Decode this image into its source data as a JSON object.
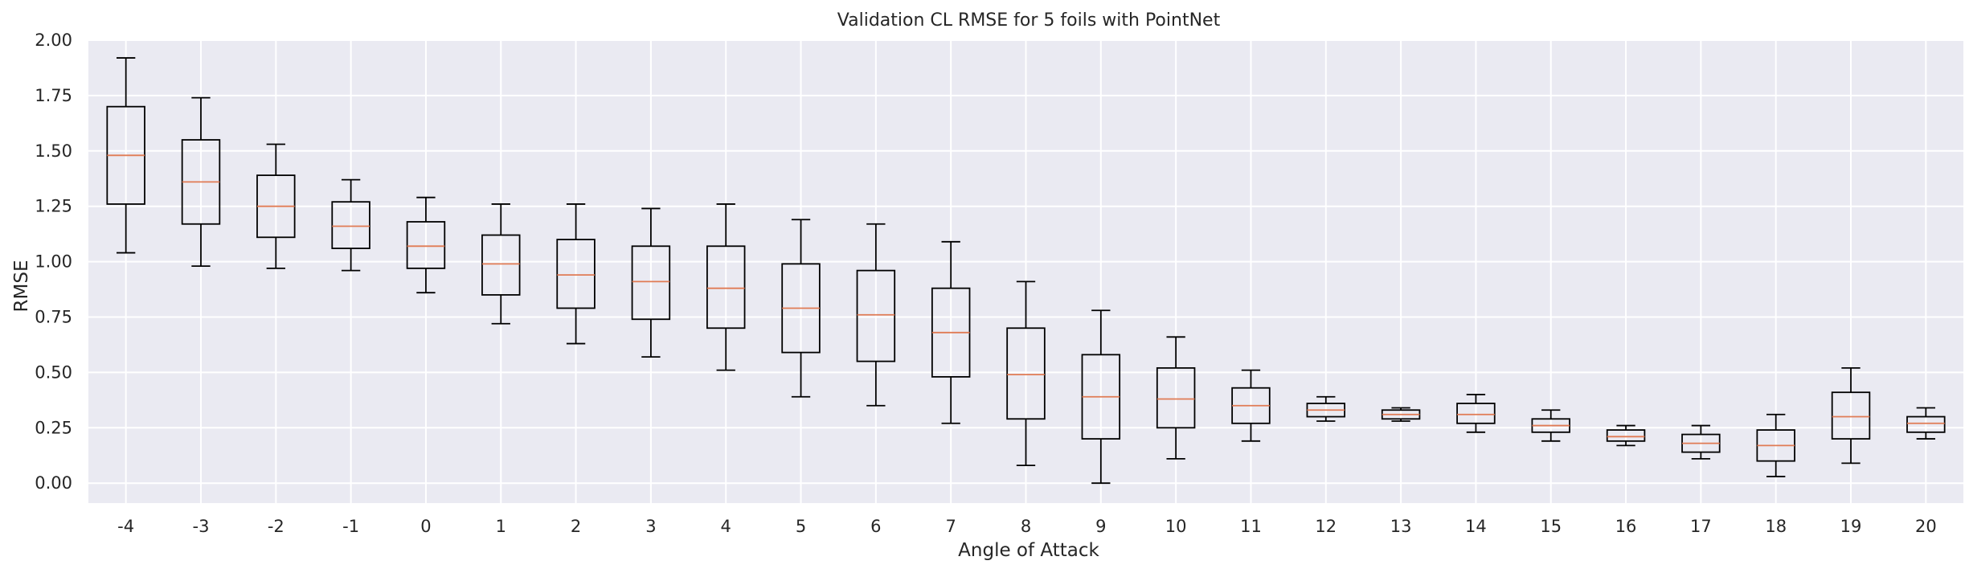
{
  "chart_data": {
    "type": "boxplot",
    "title": "Validation CL RMSE for 5 foils with PointNet",
    "xlabel": "Angle of Attack",
    "ylabel": "RMSE",
    "ylim": [
      -0.09,
      2.0
    ],
    "yticks": [
      0.0,
      0.25,
      0.5,
      0.75,
      1.0,
      1.25,
      1.5,
      1.75,
      2.0
    ],
    "ytick_labels": [
      "0.00",
      "0.25",
      "0.50",
      "0.75",
      "1.00",
      "1.25",
      "1.50",
      "1.75",
      "2.00"
    ],
    "grid": true,
    "background": "#eaeaf2",
    "box_color": "#000000",
    "median_color": "#e07b54",
    "categories": [
      "-4",
      "-3",
      "-2",
      "-1",
      "0",
      "1",
      "2",
      "3",
      "4",
      "5",
      "6",
      "7",
      "8",
      "9",
      "10",
      "11",
      "12",
      "13",
      "14",
      "15",
      "16",
      "17",
      "18",
      "19",
      "20"
    ],
    "boxes": [
      {
        "whislo": 1.04,
        "q1": 1.26,
        "med": 1.48,
        "q3": 1.7,
        "whishi": 1.92
      },
      {
        "whislo": 0.98,
        "q1": 1.17,
        "med": 1.36,
        "q3": 1.55,
        "whishi": 1.74
      },
      {
        "whislo": 0.97,
        "q1": 1.11,
        "med": 1.25,
        "q3": 1.39,
        "whishi": 1.53
      },
      {
        "whislo": 0.96,
        "q1": 1.06,
        "med": 1.16,
        "q3": 1.27,
        "whishi": 1.37
      },
      {
        "whislo": 0.86,
        "q1": 0.97,
        "med": 1.07,
        "q3": 1.18,
        "whishi": 1.29
      },
      {
        "whislo": 0.72,
        "q1": 0.85,
        "med": 0.99,
        "q3": 1.12,
        "whishi": 1.26
      },
      {
        "whislo": 0.63,
        "q1": 0.79,
        "med": 0.94,
        "q3": 1.1,
        "whishi": 1.26
      },
      {
        "whislo": 0.57,
        "q1": 0.74,
        "med": 0.91,
        "q3": 1.07,
        "whishi": 1.24
      },
      {
        "whislo": 0.51,
        "q1": 0.7,
        "med": 0.88,
        "q3": 1.07,
        "whishi": 1.26
      },
      {
        "whislo": 0.39,
        "q1": 0.59,
        "med": 0.79,
        "q3": 0.99,
        "whishi": 1.19
      },
      {
        "whislo": 0.35,
        "q1": 0.55,
        "med": 0.76,
        "q3": 0.96,
        "whishi": 1.17
      },
      {
        "whislo": 0.27,
        "q1": 0.48,
        "med": 0.68,
        "q3": 0.88,
        "whishi": 1.09
      },
      {
        "whislo": 0.08,
        "q1": 0.29,
        "med": 0.49,
        "q3": 0.7,
        "whishi": 0.91
      },
      {
        "whislo": 0.0,
        "q1": 0.2,
        "med": 0.39,
        "q3": 0.58,
        "whishi": 0.78
      },
      {
        "whislo": 0.11,
        "q1": 0.25,
        "med": 0.38,
        "q3": 0.52,
        "whishi": 0.66
      },
      {
        "whislo": 0.19,
        "q1": 0.27,
        "med": 0.35,
        "q3": 0.43,
        "whishi": 0.51
      },
      {
        "whislo": 0.28,
        "q1": 0.3,
        "med": 0.33,
        "q3": 0.36,
        "whishi": 0.39
      },
      {
        "whislo": 0.28,
        "q1": 0.29,
        "med": 0.31,
        "q3": 0.33,
        "whishi": 0.34
      },
      {
        "whislo": 0.23,
        "q1": 0.27,
        "med": 0.31,
        "q3": 0.36,
        "whishi": 0.4
      },
      {
        "whislo": 0.19,
        "q1": 0.23,
        "med": 0.26,
        "q3": 0.29,
        "whishi": 0.33
      },
      {
        "whislo": 0.17,
        "q1": 0.19,
        "med": 0.21,
        "q3": 0.24,
        "whishi": 0.26
      },
      {
        "whislo": 0.11,
        "q1": 0.14,
        "med": 0.18,
        "q3": 0.22,
        "whishi": 0.26
      },
      {
        "whislo": 0.03,
        "q1": 0.1,
        "med": 0.17,
        "q3": 0.24,
        "whishi": 0.31
      },
      {
        "whislo": 0.09,
        "q1": 0.2,
        "med": 0.3,
        "q3": 0.41,
        "whishi": 0.52
      },
      {
        "whislo": 0.2,
        "q1": 0.23,
        "med": 0.27,
        "q3": 0.3,
        "whishi": 0.34
      }
    ]
  }
}
